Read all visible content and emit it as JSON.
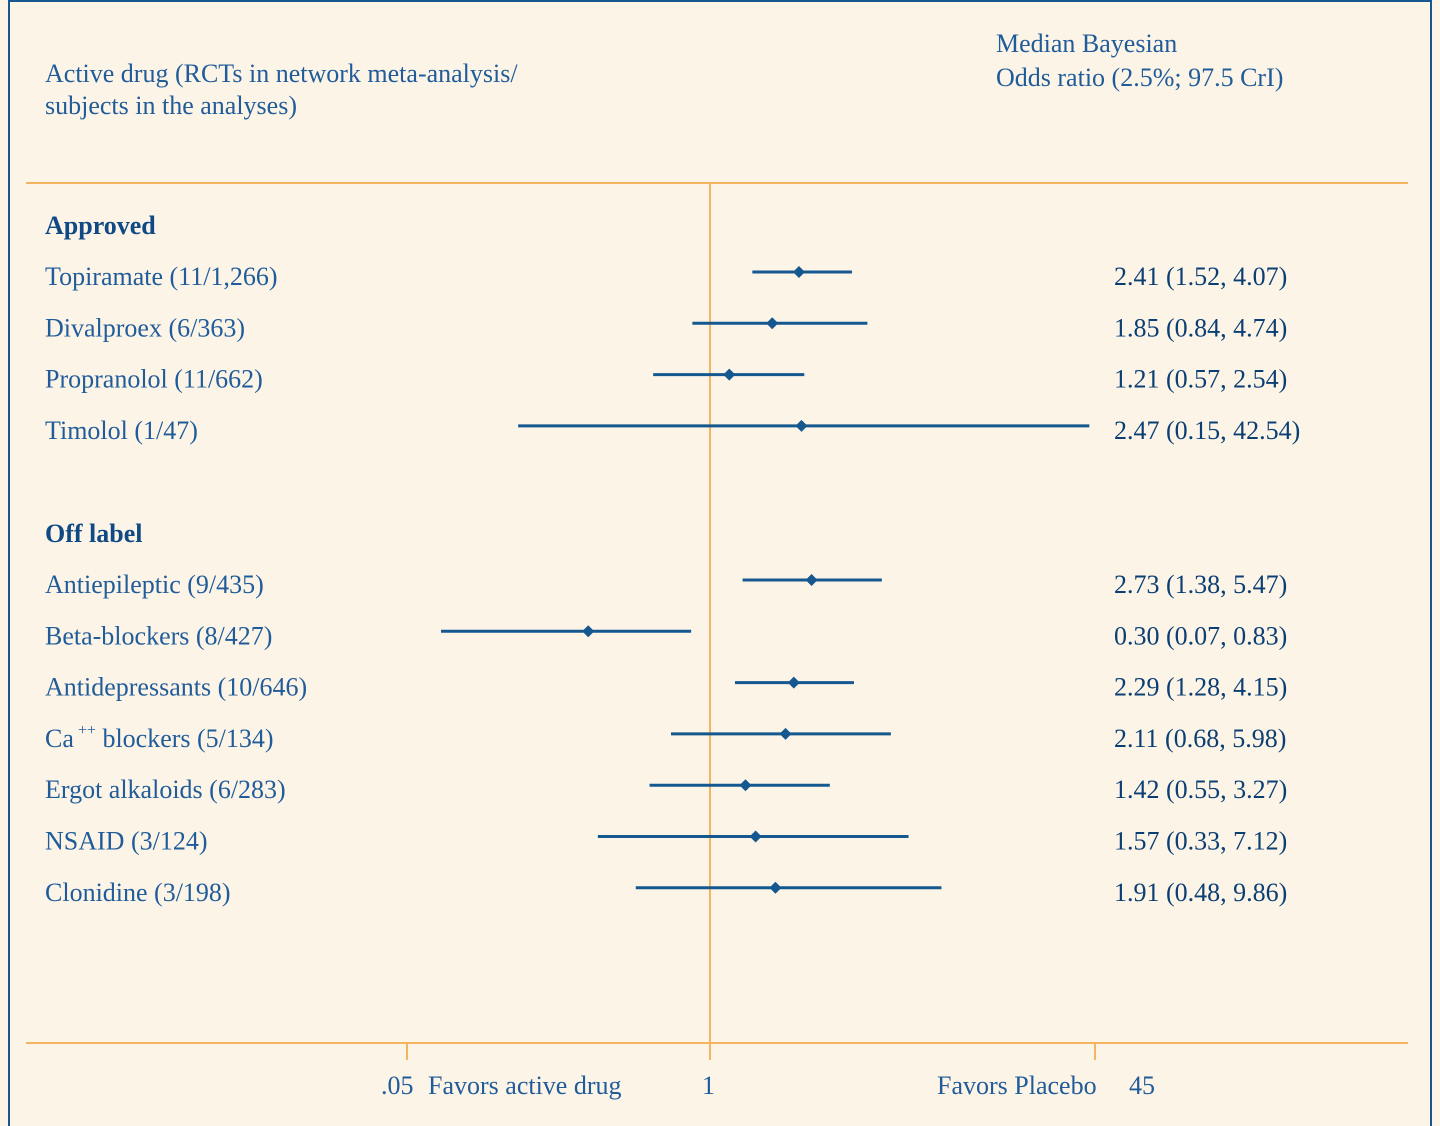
{
  "header": {
    "left_line1": "Active drug (RCTs in network meta-analysis/",
    "left_line2": "subjects in the analyses)",
    "right_line1": "Median Bayesian",
    "right_line2": "Odds ratio (2.5%; 97.5 CrI)"
  },
  "colors": {
    "line": "#15588f",
    "axis": "#f4b460",
    "background": "#fdf4e8"
  },
  "chart_data": {
    "type": "forest",
    "scale": "log",
    "xlim": [
      0.05,
      45
    ],
    "reference": 1,
    "ticks": [
      0.05,
      1,
      45
    ],
    "tick_labels": [
      ".05",
      "1",
      "45"
    ],
    "xlabel_left": "Favors active drug",
    "xlabel_right": "Favors Placebo",
    "groups": [
      {
        "name": "Approved",
        "rows": [
          {
            "label": "Topiramate (11/1,266)",
            "or": 2.41,
            "lo": 1.52,
            "hi": 4.07,
            "text": "2.41 (1.52, 4.07)"
          },
          {
            "label": "Divalproex (6/363)",
            "or": 1.85,
            "lo": 0.84,
            "hi": 4.74,
            "text": "1.85 (0.84, 4.74)"
          },
          {
            "label": "Propranolol (11/662)",
            "or": 1.21,
            "lo": 0.57,
            "hi": 2.54,
            "text": "1.21 (0.57, 2.54)"
          },
          {
            "label": "Timolol (1/47)",
            "or": 2.47,
            "lo": 0.15,
            "hi": 42.54,
            "text": "2.47 (0.15, 42.54)"
          }
        ]
      },
      {
        "name": "Off label",
        "rows": [
          {
            "label": "Antiepileptic (9/435)",
            "or": 2.73,
            "lo": 1.38,
            "hi": 5.47,
            "text": "2.73 (1.38, 5.47)"
          },
          {
            "label": "Beta-blockers (8/427)",
            "or": 0.3,
            "lo": 0.07,
            "hi": 0.83,
            "text": "0.30 (0.07, 0.83)"
          },
          {
            "label": "Antidepressants (10/646)",
            "or": 2.29,
            "lo": 1.28,
            "hi": 4.15,
            "text": "2.29 (1.28, 4.15)"
          },
          {
            "label": "Ca",
            "sup": "++",
            "label_rest": " blockers (5/134)",
            "or": 2.11,
            "lo": 0.68,
            "hi": 5.98,
            "text": "2.11 (0.68, 5.98)"
          },
          {
            "label": "Ergot alkaloids (6/283)",
            "or": 1.42,
            "lo": 0.55,
            "hi": 3.27,
            "text": "1.42 (0.55, 3.27)"
          },
          {
            "label": "NSAID (3/124)",
            "or": 1.57,
            "lo": 0.33,
            "hi": 7.12,
            "text": "1.57 (0.33, 7.12)"
          },
          {
            "label": "Clonidine (3/198)",
            "or": 1.91,
            "lo": 0.48,
            "hi": 9.86,
            "text": "1.91 (0.48, 9.86)"
          }
        ]
      }
    ]
  }
}
